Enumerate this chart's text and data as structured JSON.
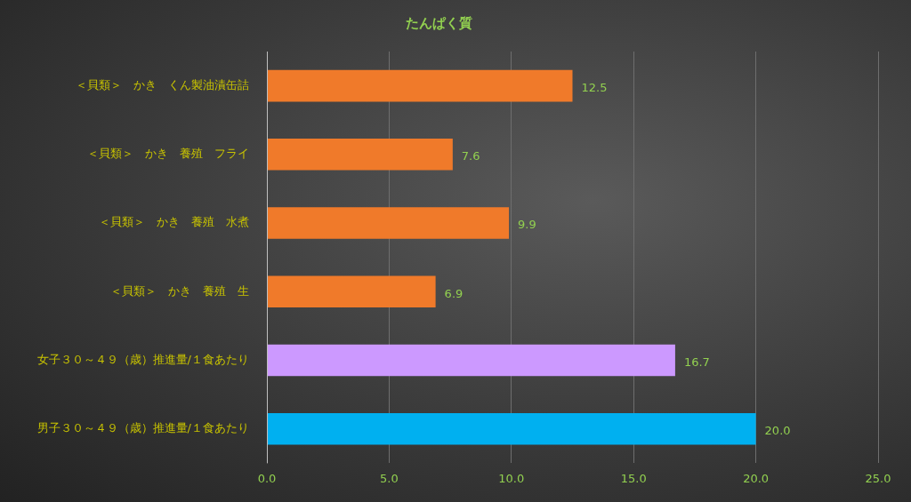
{
  "chart_data": {
    "type": "bar",
    "orientation": "horizontal",
    "title": "たんぱく質",
    "categories": [
      "＜貝類＞　かき　くん製油漬缶詰",
      "＜貝類＞　かき　養殖　フライ",
      "＜貝類＞　かき　養殖　水煮",
      "＜貝類＞　かき　養殖　生",
      "女子３０～４９（歳）推進量/１食あたり",
      "男子３０～４９（歳）推進量/１食あたり"
    ],
    "values": [
      12.5,
      7.6,
      9.9,
      6.9,
      16.7,
      20.0
    ],
    "value_labels": [
      "12.5",
      "7.6",
      "9.9",
      "6.9",
      "16.7",
      "20.0"
    ],
    "colors": [
      "#f07a2a",
      "#f07a2a",
      "#f07a2a",
      "#f07a2a",
      "#cc99ff",
      "#00b0f0"
    ],
    "xlim": [
      0,
      25
    ],
    "xticks": [
      {
        "value": 0,
        "label": "0.0"
      },
      {
        "value": 5,
        "label": "5.0"
      },
      {
        "value": 10,
        "label": "10.0"
      },
      {
        "value": 15,
        "label": "15.0"
      },
      {
        "value": 20,
        "label": "20.0"
      },
      {
        "value": 25,
        "label": "25.0"
      }
    ],
    "grid": "x",
    "legend": false
  }
}
